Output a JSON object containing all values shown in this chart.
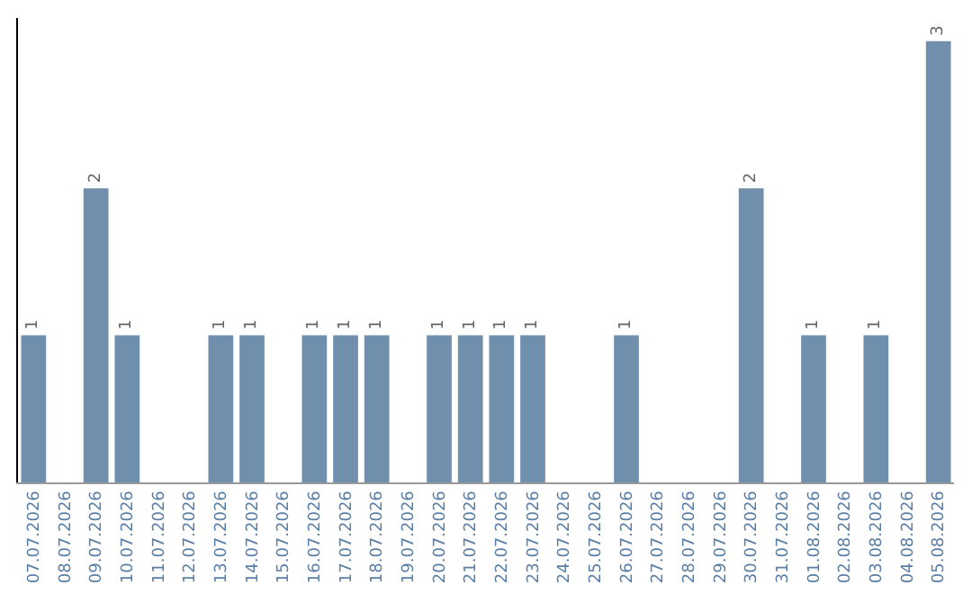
{
  "chart_data": {
    "type": "bar",
    "categories": [
      "07.07.2026",
      "08.07.2026",
      "09.07.2026",
      "10.07.2026",
      "11.07.2026",
      "12.07.2026",
      "13.07.2026",
      "14.07.2026",
      "15.07.2026",
      "16.07.2026",
      "17.07.2026",
      "18.07.2026",
      "19.07.2026",
      "20.07.2026",
      "21.07.2026",
      "22.07.2026",
      "23.07.2026",
      "24.07.2026",
      "25.07.2026",
      "26.07.2026",
      "27.07.2026",
      "28.07.2026",
      "29.07.2026",
      "30.07.2026",
      "31.07.2026",
      "01.08.2026",
      "02.08.2026",
      "03.08.2026",
      "04.08.2026",
      "05.08.2026"
    ],
    "values": [
      1,
      0,
      2,
      1,
      0,
      0,
      1,
      1,
      0,
      1,
      1,
      1,
      0,
      1,
      1,
      1,
      1,
      0,
      0,
      1,
      0,
      0,
      0,
      2,
      0,
      1,
      0,
      1,
      0,
      3
    ],
    "value_labels": [
      "1",
      null,
      "2",
      "1",
      null,
      null,
      "1",
      "1",
      null,
      "1",
      "1",
      "1",
      null,
      "1",
      "1",
      "1",
      "1",
      null,
      null,
      "1",
      null,
      null,
      null,
      "2",
      null,
      "1",
      null,
      "1",
      null,
      "3"
    ],
    "color": "#6f8fad",
    "legend": false,
    "tick_labels": "x"
  }
}
